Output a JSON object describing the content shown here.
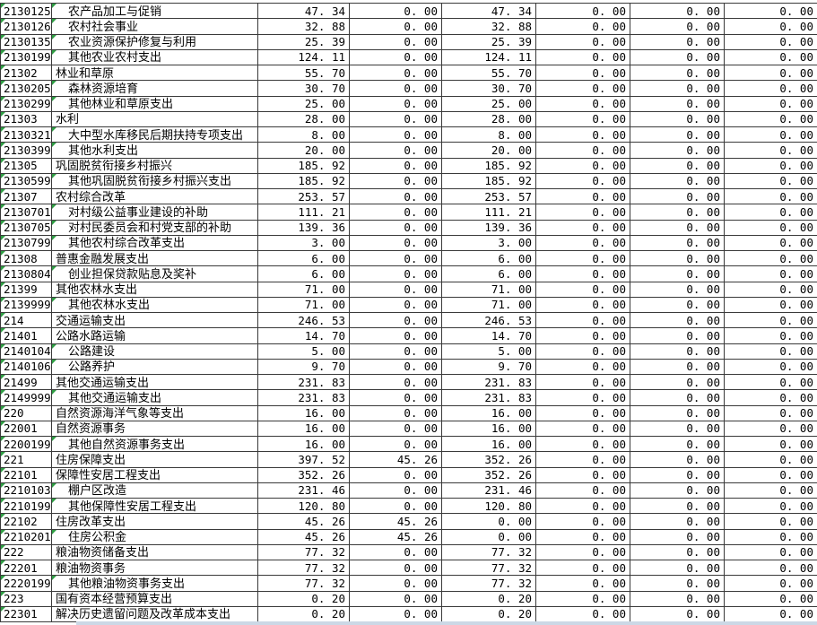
{
  "colors": {
    "grid_border": "#3a3a3a",
    "error_indicator_green": "#2f9e44",
    "text": "#000000",
    "background": "#ffffff",
    "bottom_strip": "#ccd8e6"
  },
  "table": {
    "rows": [
      {
        "code": "2130125",
        "name": "农产品加工与促销",
        "indent": true,
        "values": [
          "47.34",
          "0.00",
          "47.34",
          "0.00",
          "0.00",
          "0.00"
        ]
      },
      {
        "code": "2130126",
        "name": "农村社会事业",
        "indent": true,
        "values": [
          "32.88",
          "0.00",
          "32.88",
          "0.00",
          "0.00",
          "0.00"
        ]
      },
      {
        "code": "2130135",
        "name": "农业资源保护修复与利用",
        "indent": true,
        "values": [
          "25.39",
          "0.00",
          "25.39",
          "0.00",
          "0.00",
          "0.00"
        ]
      },
      {
        "code": "2130199",
        "name": "其他农业农村支出",
        "indent": true,
        "values": [
          "124.11",
          "0.00",
          "124.11",
          "0.00",
          "0.00",
          "0.00"
        ]
      },
      {
        "code": "21302",
        "name": "林业和草原",
        "indent": false,
        "values": [
          "55.70",
          "0.00",
          "55.70",
          "0.00",
          "0.00",
          "0.00"
        ]
      },
      {
        "code": "2130205",
        "name": "森林资源培育",
        "indent": true,
        "values": [
          "30.70",
          "0.00",
          "30.70",
          "0.00",
          "0.00",
          "0.00"
        ]
      },
      {
        "code": "2130299",
        "name": "其他林业和草原支出",
        "indent": true,
        "values": [
          "25.00",
          "0.00",
          "25.00",
          "0.00",
          "0.00",
          "0.00"
        ]
      },
      {
        "code": "21303",
        "name": "水利",
        "indent": false,
        "values": [
          "28.00",
          "0.00",
          "28.00",
          "0.00",
          "0.00",
          "0.00"
        ]
      },
      {
        "code": "2130321",
        "name": "大中型水库移民后期扶持专项支出",
        "indent": true,
        "values": [
          "8.00",
          "0.00",
          "8.00",
          "0.00",
          "0.00",
          "0.00"
        ]
      },
      {
        "code": "2130399",
        "name": "其他水利支出",
        "indent": true,
        "values": [
          "20.00",
          "0.00",
          "20.00",
          "0.00",
          "0.00",
          "0.00"
        ]
      },
      {
        "code": "21305",
        "name": "巩固脱贫衔接乡村振兴",
        "indent": false,
        "values": [
          "185.92",
          "0.00",
          "185.92",
          "0.00",
          "0.00",
          "0.00"
        ]
      },
      {
        "code": "2130599",
        "name": "其他巩固脱贫衔接乡村振兴支出",
        "indent": true,
        "values": [
          "185.92",
          "0.00",
          "185.92",
          "0.00",
          "0.00",
          "0.00"
        ]
      },
      {
        "code": "21307",
        "name": "农村综合改革",
        "indent": false,
        "values": [
          "253.57",
          "0.00",
          "253.57",
          "0.00",
          "0.00",
          "0.00"
        ]
      },
      {
        "code": "2130701",
        "name": "对村级公益事业建设的补助",
        "indent": true,
        "values": [
          "111.21",
          "0.00",
          "111.21",
          "0.00",
          "0.00",
          "0.00"
        ]
      },
      {
        "code": "2130705",
        "name": "对村民委员会和村党支部的补助",
        "indent": true,
        "values": [
          "139.36",
          "0.00",
          "139.36",
          "0.00",
          "0.00",
          "0.00"
        ]
      },
      {
        "code": "2130799",
        "name": "其他农村综合改革支出",
        "indent": true,
        "values": [
          "3.00",
          "0.00",
          "3.00",
          "0.00",
          "0.00",
          "0.00"
        ]
      },
      {
        "code": "21308",
        "name": "普惠金融发展支出",
        "indent": false,
        "values": [
          "6.00",
          "0.00",
          "6.00",
          "0.00",
          "0.00",
          "0.00"
        ]
      },
      {
        "code": "2130804",
        "name": "创业担保贷款贴息及奖补",
        "indent": true,
        "values": [
          "6.00",
          "0.00",
          "6.00",
          "0.00",
          "0.00",
          "0.00"
        ]
      },
      {
        "code": "21399",
        "name": "其他农林水支出",
        "indent": false,
        "values": [
          "71.00",
          "0.00",
          "71.00",
          "0.00",
          "0.00",
          "0.00"
        ]
      },
      {
        "code": "2139999",
        "name": "其他农林水支出",
        "indent": true,
        "values": [
          "71.00",
          "0.00",
          "71.00",
          "0.00",
          "0.00",
          "0.00"
        ]
      },
      {
        "code": "214",
        "name": "交通运输支出",
        "indent": false,
        "values": [
          "246.53",
          "0.00",
          "246.53",
          "0.00",
          "0.00",
          "0.00"
        ]
      },
      {
        "code": "21401",
        "name": "公路水路运输",
        "indent": false,
        "values": [
          "14.70",
          "0.00",
          "14.70",
          "0.00",
          "0.00",
          "0.00"
        ]
      },
      {
        "code": "2140104",
        "name": "公路建设",
        "indent": true,
        "values": [
          "5.00",
          "0.00",
          "5.00",
          "0.00",
          "0.00",
          "0.00"
        ]
      },
      {
        "code": "2140106",
        "name": "公路养护",
        "indent": true,
        "values": [
          "9.70",
          "0.00",
          "9.70",
          "0.00",
          "0.00",
          "0.00"
        ]
      },
      {
        "code": "21499",
        "name": "其他交通运输支出",
        "indent": false,
        "values": [
          "231.83",
          "0.00",
          "231.83",
          "0.00",
          "0.00",
          "0.00"
        ]
      },
      {
        "code": "2149999",
        "name": "其他交通运输支出",
        "indent": true,
        "values": [
          "231.83",
          "0.00",
          "231.83",
          "0.00",
          "0.00",
          "0.00"
        ]
      },
      {
        "code": "220",
        "name": "自然资源海洋气象等支出",
        "indent": false,
        "values": [
          "16.00",
          "0.00",
          "16.00",
          "0.00",
          "0.00",
          "0.00"
        ]
      },
      {
        "code": "22001",
        "name": "自然资源事务",
        "indent": false,
        "values": [
          "16.00",
          "0.00",
          "16.00",
          "0.00",
          "0.00",
          "0.00"
        ]
      },
      {
        "code": "2200199",
        "name": "其他自然资源事务支出",
        "indent": true,
        "values": [
          "16.00",
          "0.00",
          "16.00",
          "0.00",
          "0.00",
          "0.00"
        ]
      },
      {
        "code": "221",
        "name": "住房保障支出",
        "indent": false,
        "values": [
          "397.52",
          "45.26",
          "352.26",
          "0.00",
          "0.00",
          "0.00"
        ]
      },
      {
        "code": "22101",
        "name": "保障性安居工程支出",
        "indent": false,
        "values": [
          "352.26",
          "0.00",
          "352.26",
          "0.00",
          "0.00",
          "0.00"
        ]
      },
      {
        "code": "2210103",
        "name": "棚户区改造",
        "indent": true,
        "values": [
          "231.46",
          "0.00",
          "231.46",
          "0.00",
          "0.00",
          "0.00"
        ]
      },
      {
        "code": "2210199",
        "name": "其他保障性安居工程支出",
        "indent": true,
        "values": [
          "120.80",
          "0.00",
          "120.80",
          "0.00",
          "0.00",
          "0.00"
        ]
      },
      {
        "code": "22102",
        "name": "住房改革支出",
        "indent": false,
        "values": [
          "45.26",
          "45.26",
          "0.00",
          "0.00",
          "0.00",
          "0.00"
        ]
      },
      {
        "code": "2210201",
        "name": "住房公积金",
        "indent": true,
        "values": [
          "45.26",
          "45.26",
          "0.00",
          "0.00",
          "0.00",
          "0.00"
        ]
      },
      {
        "code": "222",
        "name": "粮油物资储备支出",
        "indent": false,
        "values": [
          "77.32",
          "0.00",
          "77.32",
          "0.00",
          "0.00",
          "0.00"
        ]
      },
      {
        "code": "22201",
        "name": "粮油物资事务",
        "indent": false,
        "values": [
          "77.32",
          "0.00",
          "77.32",
          "0.00",
          "0.00",
          "0.00"
        ]
      },
      {
        "code": "2220199",
        "name": "其他粮油物资事务支出",
        "indent": true,
        "values": [
          "77.32",
          "0.00",
          "77.32",
          "0.00",
          "0.00",
          "0.00"
        ]
      },
      {
        "code": "223",
        "name": "国有资本经营预算支出",
        "indent": false,
        "values": [
          "0.20",
          "0.00",
          "0.20",
          "0.00",
          "0.00",
          "0.00"
        ]
      },
      {
        "code": "22301",
        "name": "解决历史遗留问题及改革成本支出",
        "indent": false,
        "values": [
          "0.20",
          "0.00",
          "0.20",
          "0.00",
          "0.00",
          "0.00"
        ]
      }
    ]
  }
}
